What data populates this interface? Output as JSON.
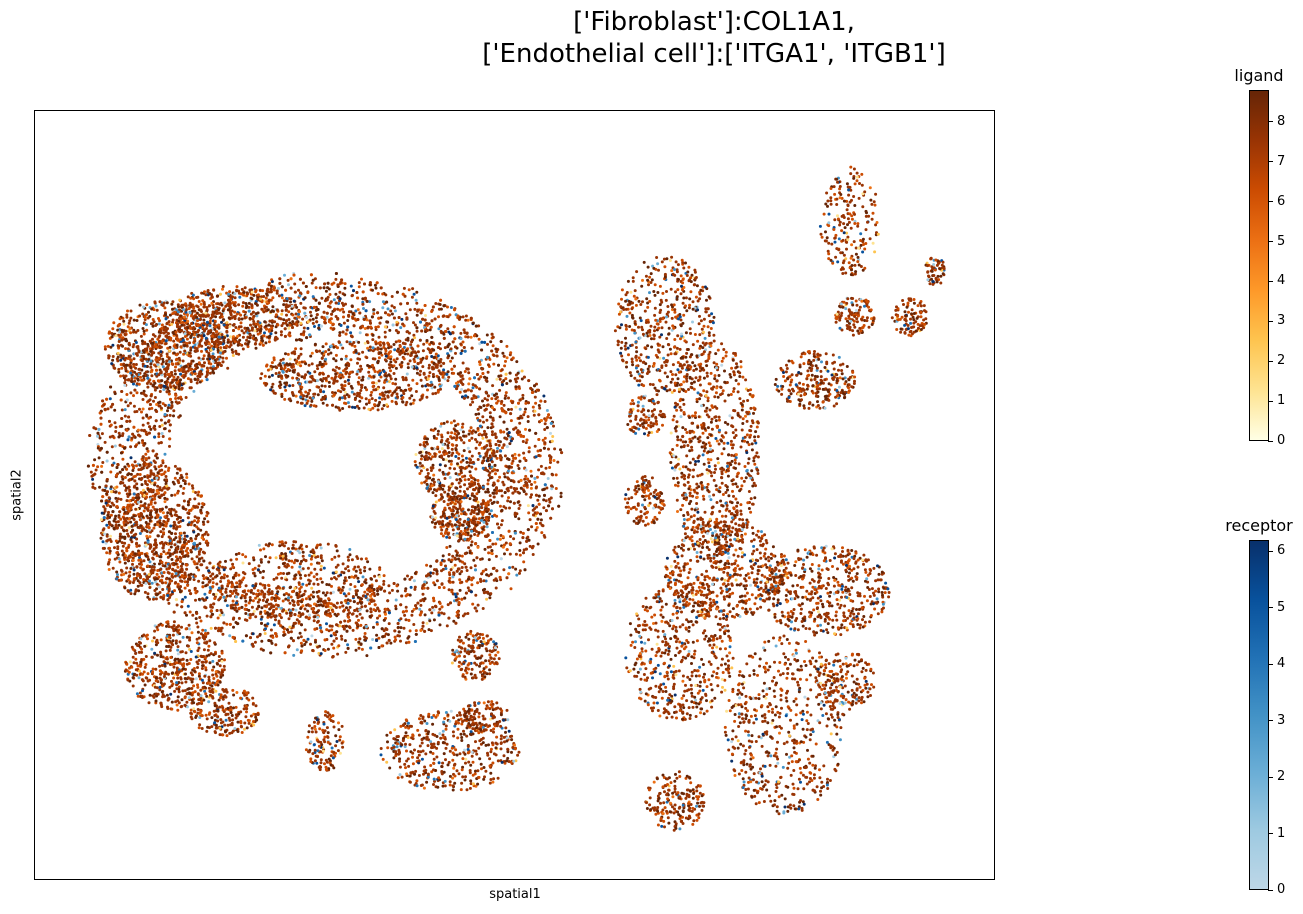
{
  "chart_data": {
    "type": "scatter",
    "title_lines": [
      "['Fibroblast']:COL1A1,",
      "['Endothelial cell']:['ITGA1', 'ITGB1']"
    ],
    "xlabel": "spatial1",
    "ylabel": "spatial2",
    "xticks": "none",
    "yticks": "none",
    "grid": false,
    "colorbars": [
      {
        "name": "ligand",
        "title": "ligand",
        "colormap": "YlOrBr",
        "range": [
          0,
          8.8
        ],
        "ticks": [
          "0",
          "1",
          "2",
          "3",
          "4",
          "5",
          "6",
          "7",
          "8"
        ],
        "colors": [
          "#ffffe5",
          "#fee391",
          "#fec44f",
          "#fe9929",
          "#ec7014",
          "#cc4c02",
          "#993404",
          "#662506"
        ]
      },
      {
        "name": "receptor",
        "title": "receptor",
        "colormap": "Blues",
        "range": [
          0,
          6.2
        ],
        "ticks": [
          "0",
          "1",
          "2",
          "3",
          "4",
          "5",
          "6"
        ],
        "colors": [
          "#bdd7e7",
          "#9ecae1",
          "#6baed6",
          "#4292c6",
          "#2171b5",
          "#08519c",
          "#08306b"
        ]
      }
    ]
  }
}
